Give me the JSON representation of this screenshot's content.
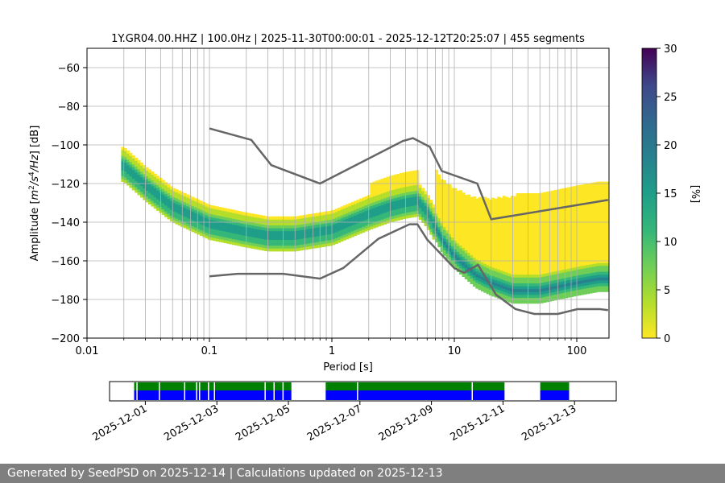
{
  "chart_data": [
    {
      "type": "heatmap",
      "title": "1Y.GR04.00.HHZ | 100.0Hz | 2025-11-30T00:00:01 - 2025-12-12T20:25:07 | 455 segments",
      "xlabel": "Period [s]",
      "ylabel": "Amplitude [m²/s⁴/Hz] [dB]",
      "x_scale": "log",
      "xlim": [
        0.01,
        180
      ],
      "ylim": [
        -200,
        -50
      ],
      "x_ticks": [
        "0.01",
        "0.1",
        "1",
        "10",
        "100"
      ],
      "y_ticks": [
        "−200",
        "−180",
        "−160",
        "−140",
        "−120",
        "−100",
        "−80",
        "−60"
      ],
      "grid": true,
      "colormap": "viridis_r",
      "colorbar": {
        "label": "[%]",
        "range": [
          0,
          30
        ],
        "ticks": [
          "0",
          "5",
          "10",
          "15",
          "20",
          "25",
          "30"
        ]
      },
      "psd_mode_curve": {
        "period": [
          0.02,
          0.03,
          0.05,
          0.1,
          0.2,
          0.3,
          0.5,
          1,
          2,
          3,
          4,
          5,
          6,
          8,
          10,
          15,
          20,
          30,
          50,
          100,
          150
        ],
        "db": [
          -112,
          -122,
          -133,
          -142,
          -146,
          -148,
          -148,
          -145,
          -137,
          -133,
          -131,
          -130,
          -136,
          -150,
          -158,
          -168,
          -172,
          -176,
          -176,
          -172,
          -170
        ]
      },
      "nhnm": {
        "period": [
          0.1,
          0.22,
          0.32,
          0.8,
          3.8,
          4.6,
          6.3,
          7.9,
          15.4,
          20,
          180
        ],
        "db": [
          -91.5,
          -97.4,
          -110.5,
          -120,
          -98,
          -96.5,
          -101,
          -113.5,
          -120,
          -138.5,
          -128.5
        ]
      },
      "nlnm": {
        "period": [
          0.1,
          0.17,
          0.4,
          0.8,
          1.24,
          2.4,
          4.3,
          5,
          6,
          10,
          12,
          15.6,
          21.9,
          31.6,
          45,
          70,
          101,
          154,
          180
        ],
        "db": [
          -168,
          -166.7,
          -166.7,
          -169.2,
          -163.7,
          -148.6,
          -141.1,
          -141.1,
          -149,
          -163.8,
          -166.2,
          -162.1,
          -177.5,
          -185,
          -187.5,
          -187.5,
          -185,
          -185,
          -185.5
        ]
      }
    },
    {
      "type": "timeline",
      "x_ticks": [
        "2025-12-01",
        "2025-12-03",
        "2025-12-05",
        "2025-12-07",
        "2025-12-09",
        "2025-12-11",
        "2025-12-13"
      ],
      "xlim": [
        "2025-11-30T00:00",
        "2025-12-14T04:00"
      ],
      "series": [
        {
          "color": "#008000",
          "row": "top",
          "segments": [
            [
              "2025-11-30T16:30",
              "2025-12-05T02:00"
            ],
            [
              "2025-12-06T01:00",
              "2025-12-11T01:00"
            ],
            [
              "2025-12-12T01:00",
              "2025-12-12T20:25"
            ]
          ]
        },
        {
          "color": "#0000ff",
          "row": "bottom",
          "segments": [
            [
              "2025-11-30T16:30",
              "2025-12-05T02:00"
            ],
            [
              "2025-12-06T01:00",
              "2025-12-11T01:00"
            ],
            [
              "2025-12-12T01:00",
              "2025-12-12T20:25"
            ]
          ]
        }
      ],
      "gaps": [
        "2025-11-30T18:00",
        "2025-12-01T09:00",
        "2025-12-02T02:00",
        "2025-12-02T10:00",
        "2025-12-02T12:00",
        "2025-12-02T18:00",
        "2025-12-02T22:00",
        "2025-12-04T08:00",
        "2025-12-04T14:00",
        "2025-12-04T20:00",
        "2025-12-06T22:00",
        "2025-12-10T03:00"
      ]
    }
  ],
  "footer": {
    "text": "Generated by SeedPSD on 2025-12-14 | Calculations updated on 2025-12-13"
  }
}
